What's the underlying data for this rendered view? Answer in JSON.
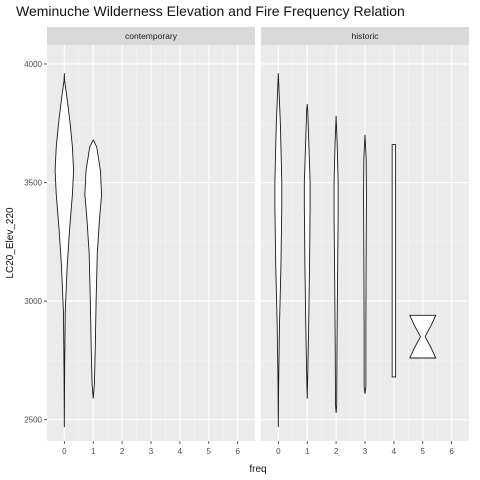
{
  "chart_data": {
    "type": "violin",
    "title": "Weminuche Wilderness Elevation and Fire Frequency Relation",
    "xlabel": "freq",
    "ylabel": "LC20_Elev_220",
    "x_ticks": [
      "0",
      "1",
      "2",
      "3",
      "4",
      "5",
      "6"
    ],
    "y_ticks": [
      2500,
      3000,
      3500,
      4000
    ],
    "xlim": [
      -0.6,
      6.6
    ],
    "ylim": [
      2410,
      4080
    ],
    "grid": true,
    "facets": [
      {
        "label": "contemporary",
        "violins": [
          {
            "x": 0,
            "profile": [
              [
                2470,
                0.0
              ],
              [
                2700,
                0.01
              ],
              [
                2950,
                0.03
              ],
              [
                3150,
                0.1
              ],
              [
                3300,
                0.18
              ],
              [
                3450,
                0.28
              ],
              [
                3550,
                0.32
              ],
              [
                3650,
                0.28
              ],
              [
                3750,
                0.2
              ],
              [
                3850,
                0.1
              ],
              [
                3930,
                0.01
              ],
              [
                3960,
                0.0
              ]
            ]
          },
          {
            "x": 1,
            "profile": [
              [
                2590,
                0.0
              ],
              [
                2650,
                0.04
              ],
              [
                2800,
                0.07
              ],
              [
                3000,
                0.1
              ],
              [
                3200,
                0.14
              ],
              [
                3350,
                0.22
              ],
              [
                3450,
                0.29
              ],
              [
                3550,
                0.25
              ],
              [
                3650,
                0.12
              ],
              [
                3680,
                0.0
              ]
            ]
          }
        ]
      },
      {
        "label": "historic",
        "violins": [
          {
            "x": 0,
            "profile": [
              [
                2470,
                0.0
              ],
              [
                2650,
                0.01
              ],
              [
                2900,
                0.04
              ],
              [
                3150,
                0.09
              ],
              [
                3400,
                0.12
              ],
              [
                3500,
                0.12
              ],
              [
                3600,
                0.1
              ],
              [
                3750,
                0.07
              ],
              [
                3900,
                0.02
              ],
              [
                3960,
                0.0
              ]
            ]
          },
          {
            "x": 1,
            "profile": [
              [
                2590,
                0.0
              ],
              [
                2700,
                0.02
              ],
              [
                2900,
                0.05
              ],
              [
                3150,
                0.08
              ],
              [
                3400,
                0.1
              ],
              [
                3500,
                0.1
              ],
              [
                3650,
                0.06
              ],
              [
                3800,
                0.02
              ],
              [
                3830,
                0.0
              ]
            ]
          },
          {
            "x": 2,
            "profile": [
              [
                2530,
                0.0
              ],
              [
                2560,
                0.02
              ],
              [
                2800,
                0.03
              ],
              [
                3100,
                0.05
              ],
              [
                3350,
                0.07
              ],
              [
                3500,
                0.07
              ],
              [
                3650,
                0.04
              ],
              [
                3780,
                0.0
              ]
            ]
          },
          {
            "x": 3,
            "profile": [
              [
                2610,
                0.0
              ],
              [
                2640,
                0.03
              ],
              [
                2900,
                0.03
              ],
              [
                3200,
                0.04
              ],
              [
                3450,
                0.05
              ],
              [
                3600,
                0.04
              ],
              [
                3700,
                0.0
              ]
            ]
          },
          {
            "x": 4,
            "profile": [
              [
                2680,
                0.06
              ],
              [
                3000,
                0.06
              ],
              [
                3300,
                0.06
              ],
              [
                3660,
                0.06
              ]
            ]
          },
          {
            "x": 5,
            "profile": [
              [
                2760,
                0.45
              ],
              [
                2800,
                0.3
              ],
              [
                2850,
                0.08
              ],
              [
                2900,
                0.3
              ],
              [
                2940,
                0.45
              ]
            ]
          }
        ]
      }
    ]
  }
}
